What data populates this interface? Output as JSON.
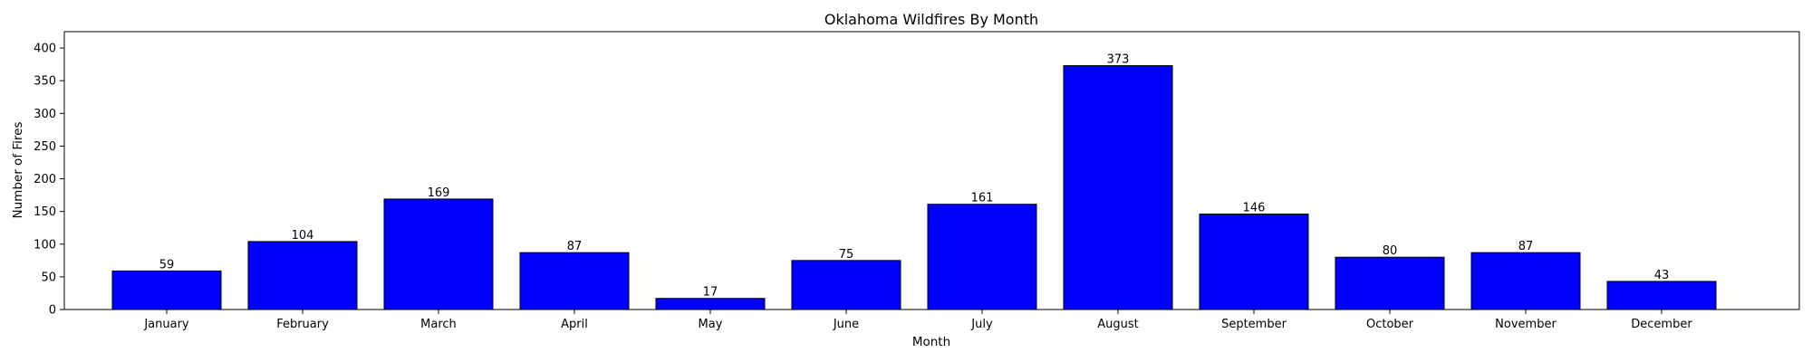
{
  "chart_data": {
    "type": "bar",
    "title": "Oklahoma Wildfires By Month",
    "xlabel": "Month",
    "ylabel": "Number of Fires",
    "categories": [
      "January",
      "February",
      "March",
      "April",
      "May",
      "June",
      "July",
      "August",
      "September",
      "October",
      "November",
      "December"
    ],
    "values": [
      59,
      104,
      169,
      87,
      17,
      75,
      161,
      373,
      146,
      80,
      87,
      43
    ],
    "ylim": [
      0,
      425
    ],
    "yticks": [
      0,
      50,
      100,
      150,
      200,
      250,
      300,
      350,
      400
    ],
    "bar_color": "#0000ff",
    "edge_color": "#000000",
    "grid": false
  }
}
